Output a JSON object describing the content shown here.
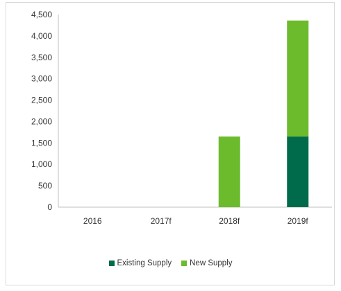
{
  "chart_data": {
    "type": "bar",
    "stacked": true,
    "categories": [
      "2016",
      "2017f",
      "2018f",
      "2019f"
    ],
    "series": [
      {
        "name": "Existing Supply",
        "values": [
          0,
          0,
          0,
          1650
        ],
        "color": "#006b4a"
      },
      {
        "name": "New Supply",
        "values": [
          0,
          0,
          1650,
          2710
        ],
        "color": "#6cbb2d"
      }
    ],
    "ylim": [
      0,
      4500
    ],
    "yticks": [
      "0",
      "500",
      "1,000",
      "1,500",
      "2,000",
      "2,500",
      "3,000",
      "3,500",
      "4,000",
      "4,500"
    ],
    "ytick_values": [
      0,
      500,
      1000,
      1500,
      2000,
      2500,
      3000,
      3500,
      4000,
      4500
    ],
    "title": "",
    "xlabel": "",
    "ylabel": "",
    "grid": false,
    "legend": "bottom"
  },
  "legend_labels": [
    "Existing Supply",
    "New Supply"
  ]
}
